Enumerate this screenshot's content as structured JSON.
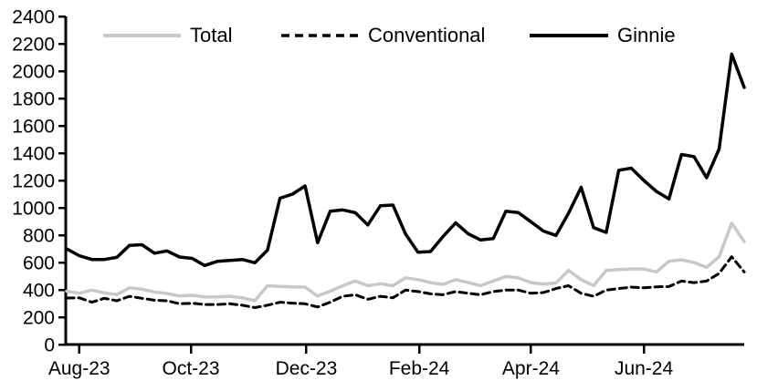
{
  "chart_data": {
    "type": "line",
    "title": "",
    "background": "#ffffff",
    "grid": false,
    "n_points": 55,
    "x_unit": "week",
    "x_axis": {
      "tick_labels": [
        "Aug-23",
        "Oct-23",
        "Dec-23",
        "Feb-24",
        "Apr-24",
        "Jun-24"
      ],
      "tick_week_positions": [
        1,
        9.9,
        19.1,
        28.1,
        37,
        46
      ]
    },
    "y_axis": {
      "min": 0,
      "max": 2400,
      "step": 200,
      "tick_labels": [
        "0",
        "200",
        "400",
        "600",
        "800",
        "1000",
        "1200",
        "1400",
        "1600",
        "1800",
        "2000",
        "2200",
        "2400"
      ]
    },
    "legend": {
      "position": "top",
      "items": [
        "Total",
        "Conventional",
        "Ginnie"
      ]
    },
    "series": [
      {
        "name": "Total",
        "color": "#c8c8c8",
        "style": "solid",
        "width": 3.5,
        "values": [
          390,
          375,
          398,
          378,
          365,
          415,
          405,
          385,
          373,
          355,
          360,
          347,
          348,
          353,
          342,
          320,
          430,
          425,
          422,
          420,
          355,
          390,
          430,
          465,
          430,
          445,
          430,
          487,
          475,
          453,
          440,
          475,
          453,
          431,
          465,
          498,
          487,
          453,
          442,
          450,
          542,
          475,
          431,
          542,
          548,
          553,
          553,
          531,
          609,
          620,
          600,
          564,
          642,
          887,
          753
        ]
      },
      {
        "name": "Conventional",
        "color": "#000000",
        "style": "dashed",
        "width": 3,
        "values": [
          340,
          342,
          309,
          338,
          320,
          353,
          338,
          324,
          320,
          298,
          302,
          293,
          293,
          298,
          287,
          270,
          287,
          309,
          303,
          298,
          275,
          309,
          353,
          364,
          331,
          353,
          342,
          398,
          387,
          371,
          364,
          387,
          375,
          364,
          387,
          398,
          398,
          375,
          380,
          409,
          431,
          375,
          353,
          398,
          409,
          420,
          415,
          422,
          424,
          464,
          453,
          464,
          520,
          642,
          531
        ]
      },
      {
        "name": "Ginnie",
        "color": "#000000",
        "style": "solid",
        "width": 3.5,
        "values": [
          700,
          650,
          622,
          622,
          638,
          725,
          730,
          668,
          685,
          640,
          630,
          578,
          608,
          615,
          622,
          598,
          690,
          1070,
          1100,
          1160,
          745,
          975,
          985,
          965,
          875,
          1015,
          1020,
          810,
          675,
          680,
          790,
          890,
          810,
          765,
          775,
          975,
          965,
          898,
          830,
          798,
          960,
          1150,
          855,
          820,
          1275,
          1290,
          1200,
          1120,
          1065,
          1390,
          1375,
          1220,
          1430,
          2125,
          1880
        ]
      }
    ]
  }
}
